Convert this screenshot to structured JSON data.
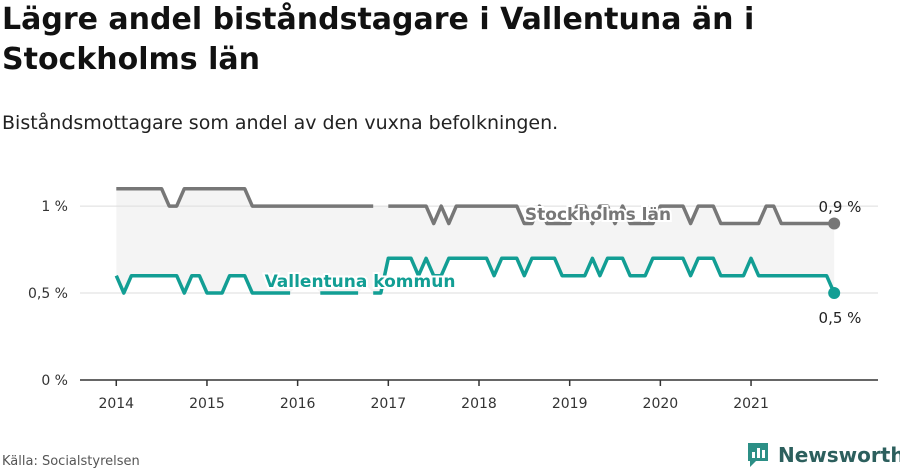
{
  "header": {
    "title": "Lägre andel biståndstagare i Vallentuna än i Stockholms län",
    "subtitle": "Biståndsmottagare som andel av den vuxna befolkningen."
  },
  "footer": {
    "source": "Källa: Socialstyrelsen",
    "brand": "Newsworthy",
    "brand_icon": "newsworthy-logo-icon"
  },
  "colors": {
    "stockholm": "#777777",
    "vallentuna": "#129e94",
    "band": "#f4f4f4",
    "grid": "#dddddd"
  },
  "chart_data": {
    "type": "line",
    "title": "Lägre andel biståndstagare i Vallentuna än i Stockholms län",
    "subtitle": "Biståndsmottagare som andel av den vuxna befolkningen.",
    "ylim": [
      0,
      1.15
    ],
    "xlim": [
      2013.6,
      2022.4
    ],
    "y_ticks": [
      0,
      0.5,
      1
    ],
    "y_tick_labels": [
      "0 %",
      "0,5 %",
      "1 %"
    ],
    "x_ticks": [
      2014,
      2015,
      2016,
      2017,
      2018,
      2019,
      2020,
      2021
    ],
    "x_tick_labels": [
      "2014",
      "2015",
      "2016",
      "2017",
      "2018",
      "2019",
      "2020",
      "2021"
    ],
    "grid": true,
    "series": [
      {
        "name": "Stockholms län",
        "color": "#777777",
        "end_label": "0,9 %",
        "values": [
          [
            2014.0,
            1.1
          ],
          [
            2014.0833,
            1.1
          ],
          [
            2014.1667,
            1.1
          ],
          [
            2014.25,
            1.1
          ],
          [
            2014.3333,
            1.1
          ],
          [
            2014.4167,
            1.1
          ],
          [
            2014.5,
            1.1
          ],
          [
            2014.5833,
            1.0
          ],
          [
            2014.6667,
            1.0
          ],
          [
            2014.75,
            1.1
          ],
          [
            2014.8333,
            1.1
          ],
          [
            2014.9167,
            1.1
          ],
          [
            2015.0,
            1.1
          ],
          [
            2015.0833,
            1.1
          ],
          [
            2015.1667,
            1.1
          ],
          [
            2015.25,
            1.1
          ],
          [
            2015.3333,
            1.1
          ],
          [
            2015.4167,
            1.1
          ],
          [
            2015.5,
            1.0
          ],
          [
            2015.5833,
            1.0
          ],
          [
            2015.6667,
            1.0
          ],
          [
            2015.75,
            1.0
          ],
          [
            2015.8333,
            1.0
          ],
          [
            2015.9167,
            1.0
          ],
          [
            2016.0,
            1.0
          ],
          [
            2016.0833,
            1.0
          ],
          [
            2016.1667,
            1.0
          ],
          [
            2016.25,
            1.0
          ],
          [
            2016.3333,
            1.0
          ],
          [
            2016.4167,
            1.0
          ],
          [
            2016.5,
            1.0
          ],
          [
            2016.5833,
            1.0
          ],
          [
            2016.6667,
            1.0
          ],
          [
            2016.75,
            1.0
          ],
          [
            2016.8333,
            1.0
          ],
          [
            2016.9167,
            null
          ],
          [
            2017.0,
            1.0
          ],
          [
            2017.0833,
            1.0
          ],
          [
            2017.1667,
            1.0
          ],
          [
            2017.25,
            1.0
          ],
          [
            2017.3333,
            1.0
          ],
          [
            2017.4167,
            1.0
          ],
          [
            2017.5,
            0.9
          ],
          [
            2017.5833,
            1.0
          ],
          [
            2017.6667,
            0.9
          ],
          [
            2017.75,
            1.0
          ],
          [
            2017.8333,
            1.0
          ],
          [
            2017.9167,
            1.0
          ],
          [
            2018.0,
            1.0
          ],
          [
            2018.0833,
            1.0
          ],
          [
            2018.1667,
            1.0
          ],
          [
            2018.25,
            1.0
          ],
          [
            2018.3333,
            1.0
          ],
          [
            2018.4167,
            1.0
          ],
          [
            2018.5,
            0.9
          ],
          [
            2018.5833,
            0.9
          ],
          [
            2018.6667,
            1.0
          ],
          [
            2018.75,
            0.9
          ],
          [
            2018.8333,
            0.9
          ],
          [
            2018.9167,
            0.9
          ],
          [
            2019.0,
            0.9
          ],
          [
            2019.0833,
            1.0
          ],
          [
            2019.1667,
            1.0
          ],
          [
            2019.25,
            0.9
          ],
          [
            2019.3333,
            1.0
          ],
          [
            2019.4167,
            1.0
          ],
          [
            2019.5,
            0.9
          ],
          [
            2019.5833,
            1.0
          ],
          [
            2019.6667,
            0.9
          ],
          [
            2019.75,
            0.9
          ],
          [
            2019.8333,
            0.9
          ],
          [
            2019.9167,
            0.9
          ],
          [
            2020.0,
            1.0
          ],
          [
            2020.0833,
            1.0
          ],
          [
            2020.1667,
            1.0
          ],
          [
            2020.25,
            1.0
          ],
          [
            2020.3333,
            0.9
          ],
          [
            2020.4167,
            1.0
          ],
          [
            2020.5,
            1.0
          ],
          [
            2020.5833,
            1.0
          ],
          [
            2020.6667,
            0.9
          ],
          [
            2020.75,
            0.9
          ],
          [
            2020.8333,
            0.9
          ],
          [
            2020.9167,
            0.9
          ],
          [
            2021.0,
            0.9
          ],
          [
            2021.0833,
            0.9
          ],
          [
            2021.1667,
            1.0
          ],
          [
            2021.25,
            1.0
          ],
          [
            2021.3333,
            0.9
          ],
          [
            2021.4167,
            0.9
          ],
          [
            2021.5,
            0.9
          ],
          [
            2021.5833,
            0.9
          ],
          [
            2021.6667,
            0.9
          ],
          [
            2021.75,
            0.9
          ],
          [
            2021.8333,
            0.9
          ],
          [
            2021.9167,
            0.9
          ]
        ]
      },
      {
        "name": "Vallentuna kommun",
        "color": "#129e94",
        "end_label": "0,5 %",
        "values": [
          [
            2014.0,
            0.6
          ],
          [
            2014.0833,
            0.5
          ],
          [
            2014.1667,
            0.6
          ],
          [
            2014.25,
            0.6
          ],
          [
            2014.3333,
            0.6
          ],
          [
            2014.4167,
            0.6
          ],
          [
            2014.5,
            0.6
          ],
          [
            2014.5833,
            0.6
          ],
          [
            2014.6667,
            0.6
          ],
          [
            2014.75,
            0.5
          ],
          [
            2014.8333,
            0.6
          ],
          [
            2014.9167,
            0.6
          ],
          [
            2015.0,
            0.5
          ],
          [
            2015.0833,
            0.5
          ],
          [
            2015.1667,
            0.5
          ],
          [
            2015.25,
            0.6
          ],
          [
            2015.3333,
            0.6
          ],
          [
            2015.4167,
            0.6
          ],
          [
            2015.5,
            0.5
          ],
          [
            2015.5833,
            0.5
          ],
          [
            2015.6667,
            0.5
          ],
          [
            2015.75,
            0.5
          ],
          [
            2015.8333,
            0.5
          ],
          [
            2015.9167,
            0.5
          ],
          [
            2016.0,
            null
          ],
          [
            2016.0833,
            null
          ],
          [
            2016.1667,
            null
          ],
          [
            2016.25,
            0.5
          ],
          [
            2016.3333,
            0.5
          ],
          [
            2016.4167,
            0.5
          ],
          [
            2016.5,
            0.5
          ],
          [
            2016.5833,
            0.5
          ],
          [
            2016.6667,
            0.5
          ],
          [
            2016.75,
            null
          ],
          [
            2016.8333,
            0.5
          ],
          [
            2016.9167,
            0.5
          ],
          [
            2017.0,
            0.7
          ],
          [
            2017.0833,
            0.7
          ],
          [
            2017.1667,
            0.7
          ],
          [
            2017.25,
            0.7
          ],
          [
            2017.3333,
            0.6
          ],
          [
            2017.4167,
            0.7
          ],
          [
            2017.5,
            0.6
          ],
          [
            2017.5833,
            0.6
          ],
          [
            2017.6667,
            0.7
          ],
          [
            2017.75,
            0.7
          ],
          [
            2017.8333,
            0.7
          ],
          [
            2017.9167,
            0.7
          ],
          [
            2018.0,
            0.7
          ],
          [
            2018.0833,
            0.7
          ],
          [
            2018.1667,
            0.6
          ],
          [
            2018.25,
            0.7
          ],
          [
            2018.3333,
            0.7
          ],
          [
            2018.4167,
            0.7
          ],
          [
            2018.5,
            0.6
          ],
          [
            2018.5833,
            0.7
          ],
          [
            2018.6667,
            0.7
          ],
          [
            2018.75,
            0.7
          ],
          [
            2018.8333,
            0.7
          ],
          [
            2018.9167,
            0.6
          ],
          [
            2019.0,
            0.6
          ],
          [
            2019.0833,
            0.6
          ],
          [
            2019.1667,
            0.6
          ],
          [
            2019.25,
            0.7
          ],
          [
            2019.3333,
            0.6
          ],
          [
            2019.4167,
            0.7
          ],
          [
            2019.5,
            0.7
          ],
          [
            2019.5833,
            0.7
          ],
          [
            2019.6667,
            0.6
          ],
          [
            2019.75,
            0.6
          ],
          [
            2019.8333,
            0.6
          ],
          [
            2019.9167,
            0.7
          ],
          [
            2020.0,
            0.7
          ],
          [
            2020.0833,
            0.7
          ],
          [
            2020.1667,
            0.7
          ],
          [
            2020.25,
            0.7
          ],
          [
            2020.3333,
            0.6
          ],
          [
            2020.4167,
            0.7
          ],
          [
            2020.5,
            0.7
          ],
          [
            2020.5833,
            0.7
          ],
          [
            2020.6667,
            0.6
          ],
          [
            2020.75,
            0.6
          ],
          [
            2020.8333,
            0.6
          ],
          [
            2020.9167,
            0.6
          ],
          [
            2021.0,
            0.7
          ],
          [
            2021.0833,
            0.6
          ],
          [
            2021.1667,
            0.6
          ],
          [
            2021.25,
            0.6
          ],
          [
            2021.3333,
            0.6
          ],
          [
            2021.4167,
            0.6
          ],
          [
            2021.5,
            0.6
          ],
          [
            2021.5833,
            0.6
          ],
          [
            2021.6667,
            0.6
          ],
          [
            2021.75,
            0.6
          ],
          [
            2021.8333,
            0.6
          ],
          [
            2021.9167,
            0.5
          ]
        ]
      }
    ]
  }
}
